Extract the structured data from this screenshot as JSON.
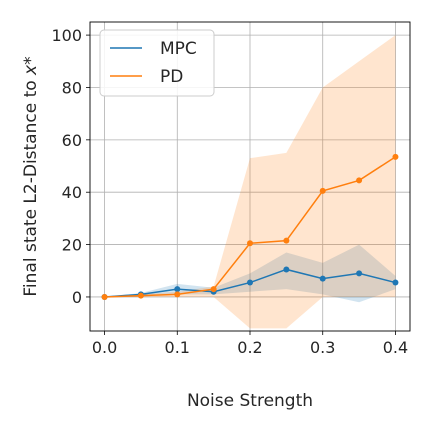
{
  "chart_data": {
    "type": "line",
    "title": "",
    "xlabel": "Noise Strength",
    "ylabel": "Final state L2-Distance to x*",
    "ylabel_parts": {
      "text": "Final state L2-Distance to ",
      "symbol": "x*"
    },
    "xlim": [
      -0.02,
      0.42
    ],
    "ylim": [
      -13,
      105
    ],
    "xticks": [
      0.0,
      0.1,
      0.2,
      0.3,
      0.4
    ],
    "xtick_labels": [
      "0.0",
      "0.1",
      "0.2",
      "0.3",
      "0.4"
    ],
    "yticks": [
      0,
      20,
      40,
      60,
      80,
      100
    ],
    "ytick_labels": [
      "0",
      "20",
      "40",
      "60",
      "80",
      "100"
    ],
    "grid": true,
    "legend_position": "top-left",
    "x": [
      0.0,
      0.05,
      0.1,
      0.15,
      0.2,
      0.25,
      0.3,
      0.35,
      0.4
    ],
    "series": [
      {
        "name": "MPC",
        "color": "#1f77b4",
        "fill_color": "#1f77b4",
        "values": [
          0,
          1,
          3,
          2,
          5.5,
          10.5,
          7,
          9,
          5.5
        ],
        "lower": [
          0,
          0.5,
          1,
          1,
          2,
          3,
          1,
          -2,
          3
        ],
        "upper": [
          0,
          1.5,
          5,
          3.5,
          9,
          17,
          13,
          20,
          8
        ]
      },
      {
        "name": "PD",
        "color": "#ff7f0e",
        "fill_color": "#ff7f0e",
        "values": [
          0,
          0.5,
          1,
          3,
          20.5,
          21.5,
          40.5,
          44.5,
          53.5
        ],
        "lower": [
          0,
          0,
          0,
          0,
          -12,
          -12,
          0,
          0,
          0
        ],
        "upper": [
          0,
          1,
          2,
          4,
          53,
          55,
          80,
          90,
          100
        ]
      }
    ]
  }
}
